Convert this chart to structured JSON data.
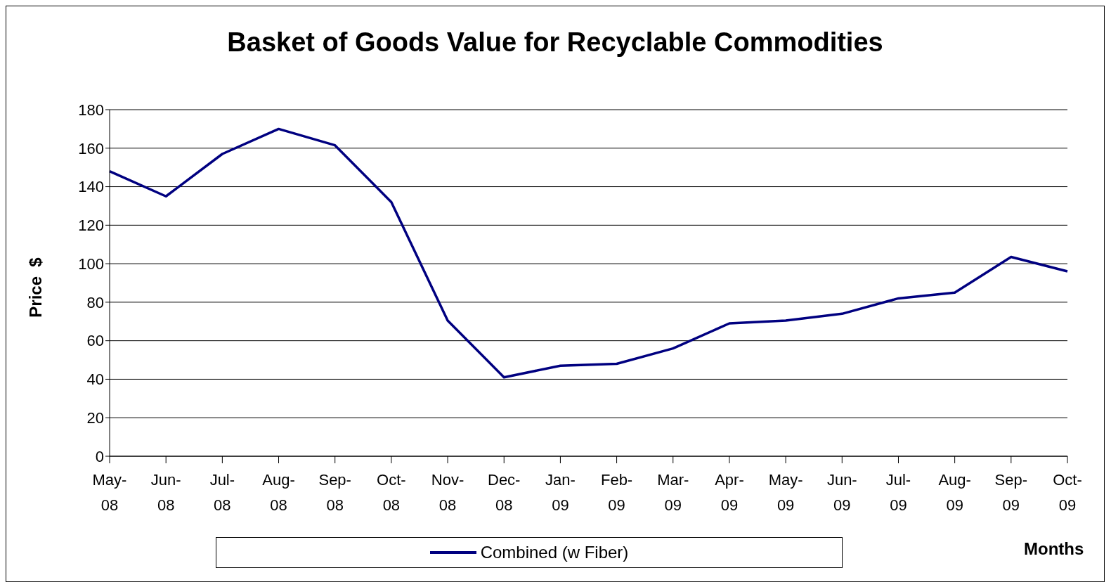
{
  "chart_data": {
    "type": "line",
    "title": "Basket of Goods Value for Recyclable Commodities",
    "xlabel": "Months",
    "ylabel": "Price  $",
    "categories": [
      "May-08",
      "Jun-08",
      "Jul-08",
      "Aug-08",
      "Sep-08",
      "Oct-08",
      "Nov-08",
      "Dec-08",
      "Jan-09",
      "Feb-09",
      "Mar-09",
      "Apr-09",
      "May-09",
      "Jun-09",
      "Jul-09",
      "Aug-09",
      "Sep-09",
      "Oct-09"
    ],
    "series": [
      {
        "name": "Combined (w Fiber)",
        "color": "#000080",
        "values": [
          148,
          135,
          157,
          170,
          161.5,
          132,
          70.5,
          41,
          47,
          48,
          56,
          69,
          70.5,
          74,
          82,
          85,
          103.5,
          96
        ]
      }
    ],
    "ylim": [
      0,
      180
    ],
    "yticks": [
      0,
      20,
      40,
      60,
      80,
      100,
      120,
      140,
      160,
      180
    ],
    "grid": "y",
    "legend": "bottom",
    "marker": "none",
    "line_style": "solid"
  }
}
